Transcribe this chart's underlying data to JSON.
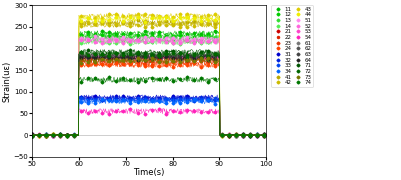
{
  "title": "",
  "xlabel": "Time(s)",
  "ylabel": "Strain(uε)",
  "xlim": [
    50,
    100
  ],
  "ylim": [
    -50,
    300
  ],
  "yticks": [
    -50,
    0,
    50,
    100,
    150,
    200,
    250,
    300
  ],
  "xticks": [
    50,
    60,
    70,
    80,
    90,
    100
  ],
  "load_start": 60,
  "load_end": 90,
  "series": [
    {
      "label": "11",
      "color": "#00bb00",
      "marker": "D",
      "value": 235
    },
    {
      "label": "12",
      "color": "#00cc00",
      "marker": "D",
      "value": 228
    },
    {
      "label": "13",
      "color": "#33dd33",
      "marker": "D",
      "value": 222
    },
    {
      "label": "14",
      "color": "#55ee55",
      "marker": "D",
      "value": 215
    },
    {
      "label": "21",
      "color": "#cc0000",
      "marker": "D",
      "value": 178
    },
    {
      "label": "22",
      "color": "#dd2200",
      "marker": "o",
      "value": 172
    },
    {
      "label": "23",
      "color": "#ee3300",
      "marker": "D",
      "value": 167
    },
    {
      "label": "24",
      "color": "#ff4400",
      "marker": "D",
      "value": 162
    },
    {
      "label": "31",
      "color": "#0000cc",
      "marker": "D",
      "value": 87
    },
    {
      "label": "32",
      "color": "#0022dd",
      "marker": "D",
      "value": 84
    },
    {
      "label": "33",
      "color": "#0044ee",
      "marker": "D",
      "value": 81
    },
    {
      "label": "34",
      "color": "#0066ff",
      "marker": "D",
      "value": 78
    },
    {
      "label": "41",
      "color": "#bbaa00",
      "marker": "D",
      "value": 260
    },
    {
      "label": "42",
      "color": "#ccbb00",
      "marker": "D",
      "value": 255
    },
    {
      "label": "43",
      "color": "#ddcc00",
      "marker": "D",
      "value": 275
    },
    {
      "label": "44",
      "color": "#eeee00",
      "marker": "D",
      "value": 268
    },
    {
      "label": "51",
      "color": "#ff88ee",
      "marker": "D",
      "value": 222
    },
    {
      "label": "52",
      "color": "#ff66dd",
      "marker": "D",
      "value": 217
    },
    {
      "label": "53",
      "color": "#ff44cc",
      "marker": "D",
      "value": 182
    },
    {
      "label": "54",
      "color": "#ff22bb",
      "marker": "D",
      "value": 55
    },
    {
      "label": "61",
      "color": "#777777",
      "marker": "D",
      "value": 185
    },
    {
      "label": "62",
      "color": "#555555",
      "marker": "D",
      "value": 183
    },
    {
      "label": "63",
      "color": "#444444",
      "marker": "D",
      "value": 181
    },
    {
      "label": "64",
      "color": "#222222",
      "marker": "D",
      "value": 179
    },
    {
      "label": "71",
      "color": "#005500",
      "marker": "D",
      "value": 192
    },
    {
      "label": "72",
      "color": "#006600",
      "marker": "D",
      "value": 187
    },
    {
      "label": "73",
      "color": "#777700",
      "marker": "D",
      "value": 172
    },
    {
      "label": "74",
      "color": "#007700",
      "marker": "D",
      "value": 128
    }
  ],
  "noise_amplitude": 6,
  "background_color": "#ffffff",
  "figwidth": 4.01,
  "figheight": 1.8,
  "dpi": 100
}
